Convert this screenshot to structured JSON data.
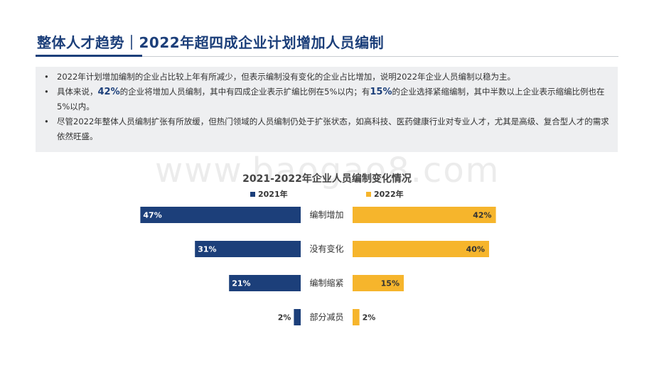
{
  "header": {
    "title": "整体人才趋势｜2022年超四成企业计划增加人员编制"
  },
  "summary": {
    "bullets": [
      {
        "segments": [
          {
            "text": "2022年计划增加编制的企业占比较上年有所减少，但表示编制没有变化的企业占比增加，说明2022年企业人员编制以稳为主。",
            "bold": false
          }
        ]
      },
      {
        "segments": [
          {
            "text": "具体来说，",
            "bold": false
          },
          {
            "text": "42%",
            "bold": true
          },
          {
            "text": "的企业将增加人员编制，其中有四成企业表示扩编比例在5%以内；有",
            "bold": false
          },
          {
            "text": "15%",
            "bold": true
          },
          {
            "text": "的企业选择紧缩编制，其中半数以上企业表示缩编比例也在5%以内。",
            "bold": false
          }
        ]
      },
      {
        "segments": [
          {
            "text": "尽管2022年整体人员编制扩张有所放缓，但热门领域的人员编制仍处于扩张状态，如高科技、医药健康行业对专业人才，尤其是高级、复合型人才的需求依然旺盛。",
            "bold": false
          }
        ]
      }
    ]
  },
  "watermark": "www.baogao8.com",
  "chart_data": {
    "type": "bar",
    "orientation": "horizontal-butterfly",
    "title": "2021-2022年企业人员编制变化情况",
    "categories": [
      "编制增加",
      "没有变化",
      "编制缩紧",
      "部分减员"
    ],
    "series": [
      {
        "name": "2021年",
        "color": "#1c3f7a",
        "values": [
          47,
          31,
          21,
          2
        ],
        "labels": [
          "47%",
          "31%",
          "21%",
          "2%"
        ]
      },
      {
        "name": "2022年",
        "color": "#f6b52c",
        "values": [
          42,
          40,
          15,
          2
        ],
        "labels": [
          "42%",
          "40%",
          "15%",
          "2%"
        ]
      }
    ],
    "unit": "%",
    "legend_position": "top",
    "grid": false
  }
}
